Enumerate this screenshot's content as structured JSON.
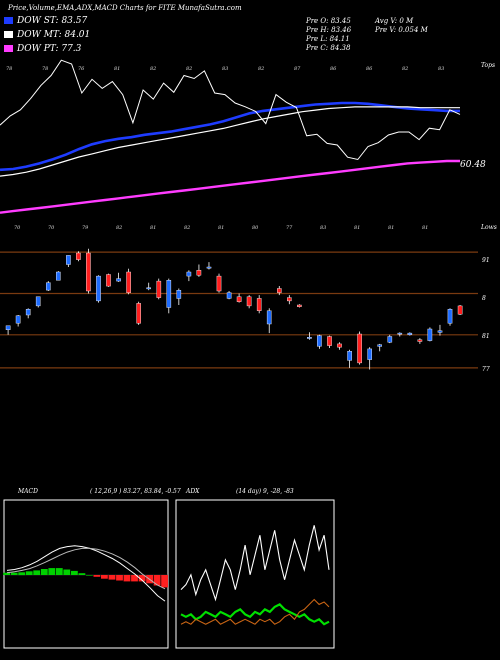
{
  "header": {
    "title": "Price,Volume,EMA,ADX,MACD Charts for FITE MunafaSutra.com",
    "legend": [
      {
        "label": "DOW ST: 83.57",
        "color": "#1e3cff"
      },
      {
        "label": "DOW MT: 84.01",
        "color": "#ffffff"
      },
      {
        "label": "DOW PT: 77.3",
        "color": "#ff3cff"
      }
    ],
    "quote": {
      "open": "Pre O: 83.45",
      "high": "Pre H: 83.46",
      "low": "Pre L: 84.11",
      "close": "Pre C: 84.38",
      "avg_vol": "Avg V: 0 M",
      "vol": "Pre V: 0.054 M"
    }
  },
  "ema_panel": {
    "top_label": "Tops",
    "bottom_label": "Lows",
    "last_value": "60.48",
    "top_marks": [
      "78",
      "78",
      "76",
      "81",
      "82",
      "82",
      "83",
      "82",
      "87",
      "86",
      "86",
      "82",
      "83"
    ],
    "low_marks": [
      "70",
      "70",
      "79",
      "82",
      "81",
      "82",
      "81",
      "80",
      "77",
      "83",
      "81",
      "81",
      "81"
    ]
  },
  "candle_panel": {
    "y_labels": [
      "91",
      "8",
      "81",
      "77"
    ]
  },
  "macd": {
    "label": "MACD",
    "params": "( 12,26,9 ) 83.27, 83.84, -0.57"
  },
  "adx": {
    "label": "ADX",
    "params": "(14 day) 9, -28, -83"
  },
  "chart_data": [
    {
      "type": "candlestick",
      "title": "Price",
      "y_axis_labels": [
        "91",
        "8",
        "81",
        "77"
      ],
      "candles": [
        {
          "o": 81.6,
          "h": 82.0,
          "l": 81.0,
          "c": 82.1,
          "dir": "up"
        },
        {
          "o": 82.4,
          "h": 83.4,
          "l": 82.0,
          "c": 83.3,
          "dir": "up"
        },
        {
          "o": 83.4,
          "h": 84.2,
          "l": 83.0,
          "c": 84.1,
          "dir": "up"
        },
        {
          "o": 84.5,
          "h": 85.6,
          "l": 84.3,
          "c": 85.6,
          "dir": "up"
        },
        {
          "o": 86.4,
          "h": 87.5,
          "l": 86.3,
          "c": 87.3,
          "dir": "up"
        },
        {
          "o": 87.6,
          "h": 88.7,
          "l": 87.6,
          "c": 88.6,
          "dir": "up"
        },
        {
          "o": 89.5,
          "h": 90.6,
          "l": 89.2,
          "c": 90.6,
          "dir": "up"
        },
        {
          "o": 90.9,
          "h": 91.1,
          "l": 89.9,
          "c": 90.1,
          "dir": "down"
        },
        {
          "o": 90.9,
          "h": 91.4,
          "l": 86.0,
          "c": 86.3,
          "dir": "down"
        },
        {
          "o": 85.1,
          "h": 88.2,
          "l": 84.9,
          "c": 88.1,
          "dir": "up"
        },
        {
          "o": 88.3,
          "h": 88.4,
          "l": 86.8,
          "c": 86.9,
          "dir": "down"
        },
        {
          "o": 87.5,
          "h": 88.5,
          "l": 87.4,
          "c": 87.8,
          "dir": "up"
        },
        {
          "o": 88.6,
          "h": 89.0,
          "l": 85.9,
          "c": 86.1,
          "dir": "down"
        },
        {
          "o": 84.8,
          "h": 85.0,
          "l": 82.2,
          "c": 82.4,
          "dir": "down"
        },
        {
          "o": 86.6,
          "h": 87.3,
          "l": 86.4,
          "c": 86.7,
          "dir": "up"
        },
        {
          "o": 87.5,
          "h": 87.8,
          "l": 85.3,
          "c": 85.5,
          "dir": "down"
        },
        {
          "o": 84.3,
          "h": 87.8,
          "l": 83.6,
          "c": 87.6,
          "dir": "up"
        },
        {
          "o": 85.4,
          "h": 86.6,
          "l": 84.6,
          "c": 86.4,
          "dir": "up"
        },
        {
          "o": 88.1,
          "h": 88.8,
          "l": 87.5,
          "c": 88.6,
          "dir": "up"
        },
        {
          "o": 88.8,
          "h": 89.5,
          "l": 88.0,
          "c": 88.2,
          "dir": "down"
        },
        {
          "o": 89.1,
          "h": 89.8,
          "l": 88.9,
          "c": 89.2,
          "dir": "up"
        },
        {
          "o": 88.1,
          "h": 88.4,
          "l": 86.1,
          "c": 86.3,
          "dir": "down"
        },
        {
          "o": 85.4,
          "h": 86.3,
          "l": 85.3,
          "c": 86.1,
          "dir": "up"
        },
        {
          "o": 85.6,
          "h": 86.0,
          "l": 84.9,
          "c": 85.0,
          "dir": "down"
        },
        {
          "o": 85.6,
          "h": 85.8,
          "l": 84.2,
          "c": 84.5,
          "dir": "down"
        },
        {
          "o": 85.4,
          "h": 85.8,
          "l": 83.6,
          "c": 83.9,
          "dir": "down"
        },
        {
          "o": 83.9,
          "h": 84.2,
          "l": 81.2,
          "c": 82.3,
          "dir": "up"
        },
        {
          "o": 86.6,
          "h": 86.9,
          "l": 85.8,
          "c": 86.1,
          "dir": "down"
        },
        {
          "o": 85.5,
          "h": 85.8,
          "l": 84.7,
          "c": 85.1,
          "dir": "down"
        },
        {
          "o": 84.6,
          "h": 84.7,
          "l": 84.3,
          "c": 84.4,
          "dir": "down"
        },
        {
          "o": 80.6,
          "h": 81.3,
          "l": 80.4,
          "c": 80.7,
          "dir": "up"
        },
        {
          "o": 79.6,
          "h": 81.0,
          "l": 79.3,
          "c": 80.9,
          "dir": "up"
        },
        {
          "o": 80.8,
          "h": 80.9,
          "l": 79.4,
          "c": 79.7,
          "dir": "down"
        },
        {
          "o": 79.9,
          "h": 80.1,
          "l": 79.2,
          "c": 79.5,
          "dir": "down"
        },
        {
          "o": 79.0,
          "h": 79.2,
          "l": 77.0,
          "c": 77.9,
          "dir": "up"
        },
        {
          "o": 81.1,
          "h": 81.4,
          "l": 77.4,
          "c": 77.6,
          "dir": "down"
        },
        {
          "o": 78.0,
          "h": 79.5,
          "l": 76.8,
          "c": 79.3,
          "dir": "up"
        },
        {
          "o": 79.6,
          "h": 79.9,
          "l": 79.0,
          "c": 79.8,
          "dir": "up"
        },
        {
          "o": 80.1,
          "h": 81.0,
          "l": 80.0,
          "c": 80.8,
          "dir": "up"
        },
        {
          "o": 81.1,
          "h": 81.3,
          "l": 80.8,
          "c": 81.2,
          "dir": "up"
        },
        {
          "o": 81.0,
          "h": 81.3,
          "l": 80.9,
          "c": 81.2,
          "dir": "up"
        },
        {
          "o": 80.4,
          "h": 80.6,
          "l": 79.9,
          "c": 80.2,
          "dir": "down"
        },
        {
          "o": 80.3,
          "h": 81.9,
          "l": 80.2,
          "c": 81.7,
          "dir": "up"
        },
        {
          "o": 81.3,
          "h": 82.2,
          "l": 80.9,
          "c": 81.5,
          "dir": "up"
        },
        {
          "o": 82.4,
          "h": 84.2,
          "l": 82.1,
          "c": 84.1,
          "dir": "up"
        },
        {
          "o": 84.5,
          "h": 84.6,
          "l": 83.4,
          "c": 83.5,
          "dir": "down"
        }
      ]
    },
    {
      "type": "line",
      "title": "EMA",
      "series": [
        {
          "name": "DOW ST",
          "color": "#1e3cff",
          "values": [
            76.2,
            76.3,
            76.6,
            77.0,
            77.5,
            78.1,
            78.8,
            79.4,
            79.8,
            80.1,
            80.3,
            80.6,
            80.8,
            81.0,
            81.3,
            81.6,
            81.9,
            82.3,
            82.8,
            83.3,
            83.6,
            83.8,
            84.0,
            84.2,
            84.4,
            84.5,
            84.6,
            84.6,
            84.5,
            84.3,
            84.1,
            83.9,
            83.8,
            83.7,
            83.6,
            83.6
          ]
        },
        {
          "name": "DOW MT",
          "color": "#ffffff",
          "values": [
            75.4,
            75.6,
            75.9,
            76.3,
            76.8,
            77.3,
            77.8,
            78.2,
            78.6,
            79.0,
            79.3,
            79.6,
            79.9,
            80.2,
            80.5,
            80.8,
            81.1,
            81.4,
            81.8,
            82.2,
            82.6,
            82.9,
            83.2,
            83.5,
            83.7,
            83.9,
            84.0,
            84.1,
            84.1,
            84.1,
            84.1,
            84.1,
            84.0,
            84.0,
            84.0,
            84.0
          ]
        },
        {
          "name": "DOW PT",
          "color": "#ff3cff",
          "values": [
            70.8,
            71.0,
            71.2,
            71.4,
            71.6,
            71.8,
            72.0,
            72.2,
            72.4,
            72.6,
            72.8,
            73.0,
            73.2,
            73.4,
            73.6,
            73.8,
            74.0,
            74.2,
            74.4,
            74.6,
            74.8,
            75.0,
            75.2,
            75.4,
            75.6,
            75.8,
            76.0,
            76.2,
            76.4,
            76.6,
            76.8,
            77.0,
            77.1,
            77.2,
            77.3,
            77.3
          ]
        }
      ]
    },
    {
      "type": "line",
      "title": "MACD",
      "series": [
        {
          "name": "MACD",
          "values": [
            0.1,
            0.12,
            0.16,
            0.22,
            0.3,
            0.4,
            0.5,
            0.58,
            0.62,
            0.64,
            0.62,
            0.58,
            0.52,
            0.44,
            0.36,
            0.26,
            0.14,
            0.02,
            -0.12,
            -0.28,
            -0.45,
            -0.57
          ]
        },
        {
          "name": "Signal",
          "values": [
            0.05,
            0.07,
            0.1,
            0.14,
            0.2,
            0.27,
            0.35,
            0.43,
            0.5,
            0.55,
            0.58,
            0.58,
            0.56,
            0.52,
            0.46,
            0.38,
            0.28,
            0.16,
            0.02,
            -0.1,
            -0.22,
            -0.3
          ]
        },
        {
          "name": "Histogram",
          "values": [
            0.05,
            0.05,
            0.06,
            0.08,
            0.1,
            0.13,
            0.15,
            0.15,
            0.12,
            0.09,
            0.04,
            0.0,
            -0.04,
            -0.08,
            -0.1,
            -0.12,
            -0.14,
            -0.14,
            -0.14,
            -0.18,
            -0.23,
            -0.27
          ]
        }
      ]
    },
    {
      "type": "line",
      "title": "ADX",
      "series": [
        {
          "name": "Line A",
          "color": "#ffffff",
          "values": [
            22,
            24,
            28,
            20,
            26,
            30,
            24,
            18,
            26,
            34,
            30,
            22,
            30,
            40,
            28,
            36,
            44,
            30,
            38,
            46,
            34,
            26,
            34,
            42,
            36,
            30,
            40,
            48,
            38,
            44,
            30
          ]
        },
        {
          "name": "Line B",
          "color": "#00e000",
          "values": [
            12,
            11,
            12,
            10,
            11,
            13,
            12,
            11,
            13,
            12,
            11,
            13,
            14,
            12,
            11,
            13,
            12,
            14,
            13,
            15,
            16,
            14,
            13,
            12,
            11,
            12,
            10,
            9,
            10,
            8,
            9
          ]
        },
        {
          "name": "Line C",
          "color": "#c86414",
          "values": [
            8,
            9,
            8,
            10,
            9,
            8,
            9,
            10,
            8,
            9,
            10,
            8,
            9,
            10,
            9,
            8,
            10,
            9,
            10,
            8,
            9,
            11,
            12,
            10,
            13,
            14,
            16,
            18,
            16,
            17,
            15
          ]
        }
      ]
    }
  ]
}
